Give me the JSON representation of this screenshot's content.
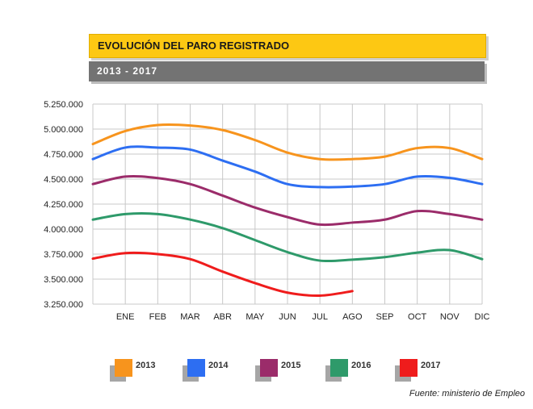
{
  "header": {
    "title": "EVOLUCIÓN DEL PARO REGISTRADO",
    "subtitle": "2013 - 2017"
  },
  "source": "Fuente: ministerio de Empleo",
  "chart_data": {
    "type": "line",
    "categories": [
      "",
      "ENE",
      "FEB",
      "MAR",
      "ABR",
      "MAY",
      "JUN",
      "JUL",
      "AGO",
      "SEP",
      "OCT",
      "NOV",
      "DIC"
    ],
    "ylim": [
      3250000,
      5250000
    ],
    "yticks": [
      3250000,
      3500000,
      3750000,
      4000000,
      4250000,
      4500000,
      4750000,
      5000000,
      5250000
    ],
    "ytick_labels": [
      "3.250.000",
      "3.500.000",
      "3.750.000",
      "4.000.000",
      "4.250.000",
      "4.500.000",
      "4.750.000",
      "5.000.000",
      "5.250.000"
    ],
    "grid": true,
    "legend_position": "bottom",
    "series": [
      {
        "name": "2013",
        "color": "#f7941d",
        "values": [
          4850000,
          4980000,
          5040000,
          5035000,
          4990000,
          4890000,
          4765000,
          4700000,
          4700000,
          4725000,
          4810000,
          4810000,
          4700000
        ]
      },
      {
        "name": "2014",
        "color": "#2d6ef2",
        "values": [
          4700000,
          4815000,
          4815000,
          4795000,
          4685000,
          4575000,
          4450000,
          4420000,
          4425000,
          4450000,
          4525000,
          4512000,
          4450000
        ]
      },
      {
        "name": "2015",
        "color": "#9b2c6a",
        "values": [
          4450000,
          4525000,
          4510000,
          4450000,
          4335000,
          4215000,
          4120000,
          4045000,
          4065000,
          4095000,
          4180000,
          4150000,
          4095000
        ]
      },
      {
        "name": "2016",
        "color": "#2e9a6a",
        "values": [
          4095000,
          4150000,
          4150000,
          4095000,
          4010000,
          3890000,
          3770000,
          3685000,
          3695000,
          3720000,
          3765000,
          3790000,
          3700000
        ]
      },
      {
        "name": "2017",
        "color": "#ef1c1c",
        "values": [
          3705000,
          3760000,
          3750000,
          3700000,
          3575000,
          3460000,
          3365000,
          3335000,
          3380000,
          null,
          null,
          null,
          null
        ]
      }
    ]
  }
}
